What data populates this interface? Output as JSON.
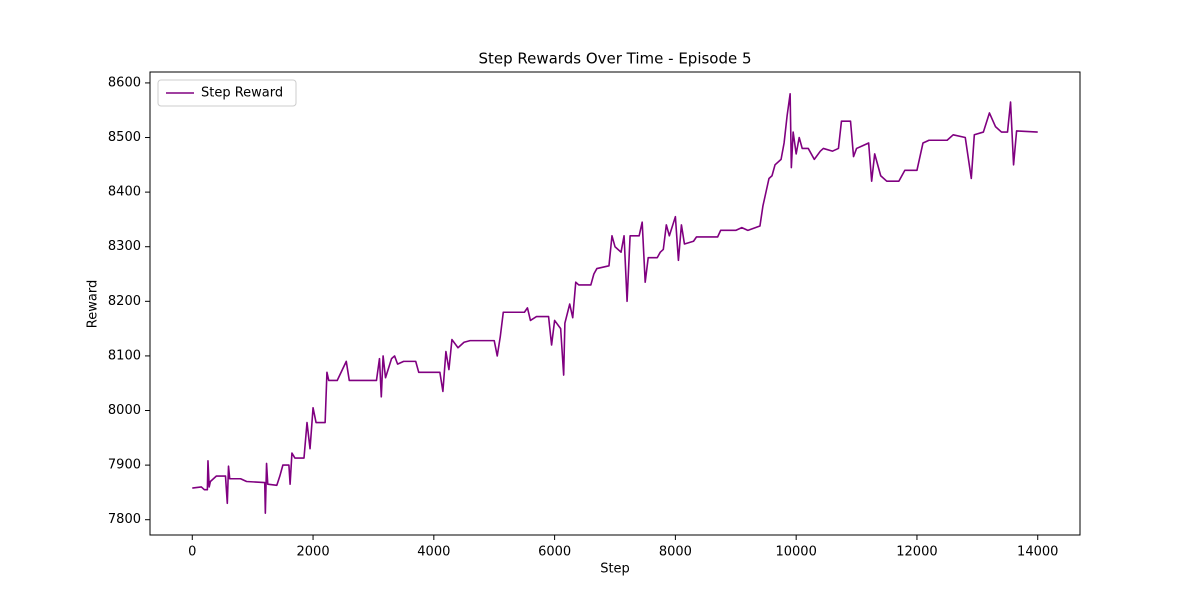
{
  "chart_data": {
    "type": "line",
    "title": "Step Rewards Over Time - Episode 5",
    "x_label": "Step",
    "y_label": "Reward",
    "legend": "upper left",
    "x": [
      0,
      150,
      200,
      250,
      260,
      280,
      300,
      400,
      550,
      580,
      600,
      620,
      800,
      900,
      1200,
      1210,
      1230,
      1250,
      1400,
      1450,
      1500,
      1600,
      1620,
      1650,
      1700,
      1850,
      1900,
      1950,
      2000,
      2050,
      2200,
      2230,
      2260,
      2400,
      2550,
      2600,
      3050,
      3100,
      3130,
      3160,
      3200,
      3300,
      3350,
      3400,
      3500,
      3700,
      3750,
      4100,
      4150,
      4200,
      4250,
      4300,
      4400,
      4500,
      4600,
      5000,
      5050,
      5100,
      5150,
      5500,
      5550,
      5600,
      5700,
      5900,
      5950,
      6000,
      6100,
      6150,
      6170,
      6250,
      6300,
      6350,
      6400,
      6600,
      6650,
      6700,
      6900,
      6950,
      7000,
      7100,
      7150,
      7200,
      7250,
      7400,
      7450,
      7500,
      7550,
      7700,
      7750,
      7800,
      7850,
      7900,
      8000,
      8050,
      8100,
      8150,
      8300,
      8350,
      8700,
      8750,
      9000,
      9100,
      9200,
      9400,
      9450,
      9500,
      9550,
      9600,
      9650,
      9750,
      9800,
      9850,
      9900,
      9920,
      9950,
      10000,
      10050,
      10100,
      10200,
      10300,
      10400,
      10450,
      10600,
      10700,
      10750,
      10900,
      10950,
      11000,
      11100,
      11200,
      11250,
      11300,
      11400,
      11500,
      11700,
      11800,
      12000,
      12100,
      12200,
      12500,
      12600,
      12800,
      12900,
      12950,
      13100,
      13200,
      13300,
      13400,
      13500,
      13550,
      13600,
      13650,
      14000
    ],
    "series": [
      {
        "name": "Step Reward",
        "color": "#800080",
        "values": [
          7858,
          7860,
          7855,
          7855,
          7908,
          7860,
          7870,
          7880,
          7880,
          7830,
          7898,
          7875,
          7875,
          7870,
          7868,
          7812,
          7903,
          7865,
          7863,
          7880,
          7900,
          7900,
          7865,
          7922,
          7913,
          7913,
          7978,
          7930,
          8005,
          7978,
          7978,
          8070,
          8055,
          8055,
          8090,
          8055,
          8055,
          8095,
          8025,
          8100,
          8060,
          8095,
          8100,
          8085,
          8090,
          8090,
          8070,
          8070,
          8035,
          8108,
          8075,
          8130,
          8115,
          8125,
          8128,
          8128,
          8100,
          8135,
          8180,
          8180,
          8188,
          8165,
          8172,
          8172,
          8120,
          8165,
          8150,
          8065,
          8160,
          8195,
          8170,
          8235,
          8230,
          8230,
          8250,
          8260,
          8265,
          8320,
          8300,
          8290,
          8320,
          8200,
          8320,
          8320,
          8345,
          8235,
          8280,
          8280,
          8290,
          8295,
          8340,
          8320,
          8355,
          8275,
          8340,
          8305,
          8310,
          8318,
          8318,
          8330,
          8330,
          8335,
          8330,
          8338,
          8375,
          8400,
          8425,
          8430,
          8450,
          8460,
          8490,
          8540,
          8580,
          8445,
          8510,
          8470,
          8500,
          8480,
          8480,
          8460,
          8475,
          8480,
          8475,
          8480,
          8530,
          8530,
          8465,
          8480,
          8485,
          8490,
          8420,
          8470,
          8430,
          8420,
          8420,
          8440,
          8440,
          8490,
          8495,
          8495,
          8505,
          8500,
          8425,
          8505,
          8510,
          8545,
          8520,
          8510,
          8510,
          8565,
          8450,
          8512,
          8510
        ]
      }
    ],
    "xlim": [
      -700,
      14700
    ],
    "xticks": [
      0,
      2000,
      4000,
      6000,
      8000,
      10000,
      12000,
      14000
    ],
    "ylim": [
      7772,
      8620
    ],
    "yticks": [
      7800,
      7900,
      8000,
      8100,
      8200,
      8300,
      8400,
      8500,
      8600
    ]
  }
}
